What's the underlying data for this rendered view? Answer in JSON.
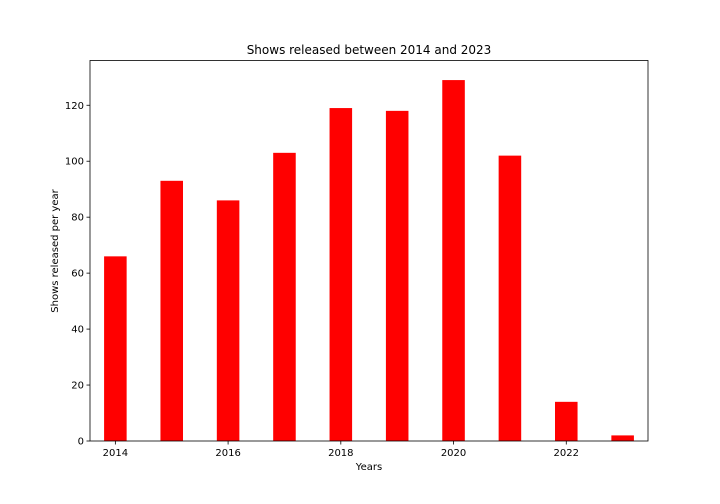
{
  "chart_data": {
    "type": "bar",
    "title": "Shows released between 2014 and 2023",
    "xlabel": "Years",
    "ylabel": "Shows released per year",
    "x": [
      2014,
      2015,
      2016,
      2017,
      2018,
      2019,
      2020,
      2021,
      2022,
      2023
    ],
    "values": [
      66,
      93,
      86,
      103,
      119,
      118,
      129,
      102,
      14,
      2
    ],
    "xlim": [
      2013.55,
      2023.45
    ],
    "ylim": [
      0,
      136
    ],
    "xticks": [
      2014,
      2016,
      2018,
      2020,
      2022
    ],
    "yticks": [
      0,
      20,
      40,
      60,
      80,
      100,
      120
    ],
    "bar_width": 0.4,
    "bar_color": "#ff0000",
    "grid": false,
    "legend": "none"
  }
}
